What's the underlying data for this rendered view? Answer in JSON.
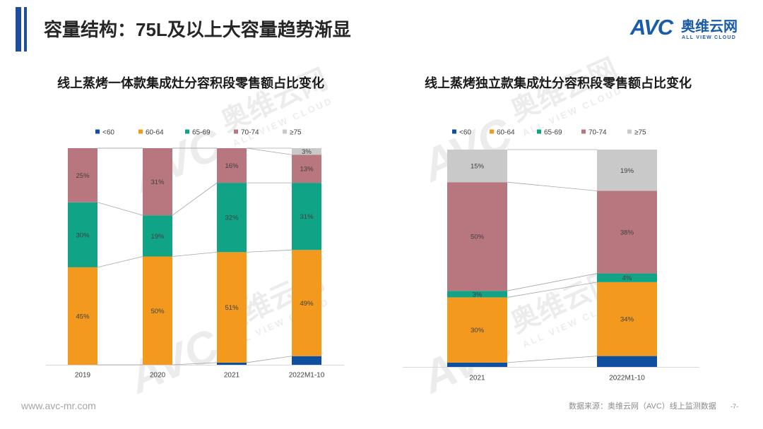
{
  "header": {
    "title": "容量结构：75L及以上大容量趋势渐显"
  },
  "logo": {
    "mark": "AVC",
    "name": "奥维云网",
    "tagline": "ALL VIEW CLOUD"
  },
  "watermark": {
    "mark": "AVC",
    "name": "奥维云网",
    "tagline": "ALL VIEW CLOUD"
  },
  "colors": {
    "accent": "#1E4D9B",
    "logo": "#1B5CAA"
  },
  "footer": {
    "website": "www.avc-mr.com",
    "source": "数据来源：奥维云网（AVC）线上监测数据",
    "page": "-7-"
  },
  "chart_data": [
    {
      "type": "bar",
      "stacked": true,
      "title": "线上蒸烤一体款集成灶分容积段零售额占比变化",
      "categories": [
        "2019",
        "2020",
        "2021",
        "2022M1-10"
      ],
      "value_suffix": "%",
      "ylim": [
        0,
        100
      ],
      "legend": "top",
      "grid": false,
      "series": [
        {
          "name": "<60",
          "color": "#0F4FA0",
          "data_labels": false,
          "values": [
            0,
            0,
            1,
            4
          ]
        },
        {
          "name": "60-64",
          "color": "#F39A1E",
          "data_labels": true,
          "values": [
            45,
            50,
            51,
            49
          ]
        },
        {
          "name": "65-69",
          "color": "#11A386",
          "data_labels": true,
          "values": [
            30,
            19,
            32,
            31
          ]
        },
        {
          "name": "70-74",
          "color": "#B8777E",
          "data_labels": true,
          "values": [
            25,
            31,
            16,
            13
          ]
        },
        {
          "name": "≥75",
          "color": "#C9C9C9",
          "data_labels": true,
          "values": [
            0,
            0,
            0,
            3
          ]
        }
      ]
    },
    {
      "type": "bar",
      "stacked": true,
      "title": "线上蒸烤独立款集成灶分容积段零售额占比变化",
      "categories": [
        "2021",
        "2022M1-10"
      ],
      "value_suffix": "%",
      "ylim": [
        0,
        100
      ],
      "legend": "top",
      "grid": false,
      "series": [
        {
          "name": "<60",
          "color": "#0F4FA0",
          "data_labels": false,
          "values": [
            2,
            5
          ]
        },
        {
          "name": "60-64",
          "color": "#F39A1E",
          "data_labels": true,
          "values": [
            30,
            34
          ]
        },
        {
          "name": "65-69",
          "color": "#11A386",
          "data_labels": true,
          "values": [
            3,
            4
          ]
        },
        {
          "name": "70-74",
          "color": "#B8777E",
          "data_labels": true,
          "values": [
            50,
            38
          ]
        },
        {
          "name": "≥75",
          "color": "#C9C9C9",
          "data_labels": true,
          "values": [
            15,
            19
          ]
        }
      ]
    }
  ]
}
